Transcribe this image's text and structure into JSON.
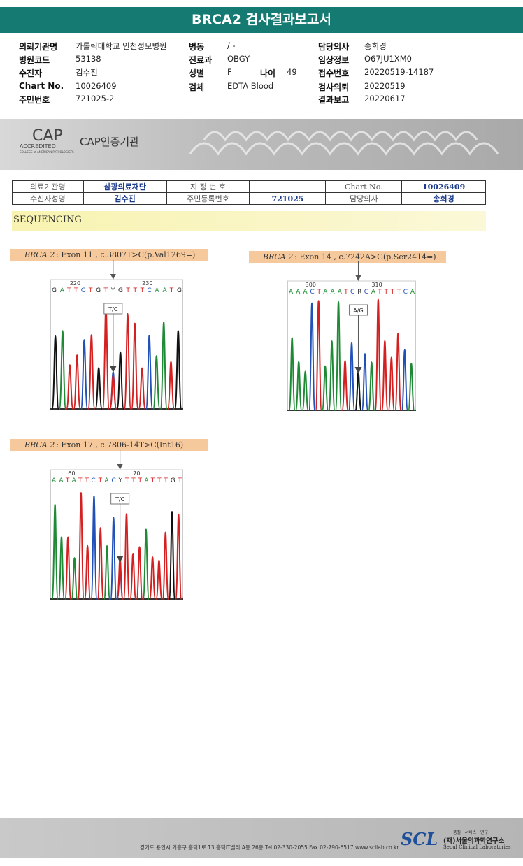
{
  "header": {
    "title": "BRCA2 검사결과보고서"
  },
  "info": {
    "left": [
      [
        "의뢰기관명",
        "가톨릭대학교 인천성모병원"
      ],
      [
        "병원코드",
        "53138"
      ],
      [
        "수진자",
        "김수진"
      ],
      [
        "Chart No.",
        "10026409"
      ],
      [
        "주민번호",
        "721025-2"
      ]
    ],
    "middle": [
      [
        "병동",
        "/ -"
      ],
      [
        "진료과",
        "OBGY"
      ],
      [
        "성별",
        "F"
      ],
      [
        "검체",
        "EDTA Blood"
      ]
    ],
    "age": [
      "나이",
      "49"
    ],
    "right": [
      [
        "담당의사",
        "송희경"
      ],
      [
        "임상정보",
        "O67JU1XM0"
      ],
      [
        "접수번호",
        "20220519-14187"
      ],
      [
        "검사의뢰",
        "20220519"
      ],
      [
        "결과보고",
        "20220617"
      ]
    ]
  },
  "banner": {
    "logo": "CAP",
    "accredited": "ACCREDITED",
    "college": "COLLEGE of AMERICAN PATHOLOGISTS",
    "label": "CAP인증기관"
  },
  "table": {
    "rows": [
      [
        "의료기관명",
        "삼광의료재단",
        "지 정 번 호",
        "Chart No.",
        "10026409"
      ],
      [
        "수신자성명",
        "김수진",
        "주민등록번호",
        "721025",
        "담당의사",
        "송희경"
      ]
    ]
  },
  "sequencing": {
    "title": "SEQUENCING",
    "panels": [
      {
        "gene": "BRCA 2",
        "variant": ": Exon 11 , c.3807T>C(p.Val1269=)",
        "positions": [
          "220",
          "230"
        ],
        "sequence": "GATTCTGTYGTTTCAATG",
        "call": "T/C"
      },
      {
        "gene": "BRCA 2",
        "variant": ": Exon 14 , c.7242A>G(p.Ser2414=)",
        "positions": [
          "300",
          "310"
        ],
        "sequence": "AAACTAAATCRCATTTTCA",
        "call": "A/G"
      },
      {
        "gene": "BRCA 2",
        "variant": ": Exon 17 , c.7806-14T>C(Int16)",
        "positions": [
          "60",
          "70"
        ],
        "sequence": "AATATTCTACYTTTATTTGT",
        "call": "T/C"
      }
    ]
  },
  "footer": {
    "motto": "품질 · 서비스 · 연구",
    "logo": "SCL",
    "org": "(재)서울의과학연구소",
    "org_en": "Seoul Clinical Laboratories",
    "address": "경기도 용인시 기흥구 흥덕1로 13 흥덕IT밸리 A동 26층  Tel.02-330-2055  Fax.02-790-6517  www.scllab.co.kr"
  }
}
